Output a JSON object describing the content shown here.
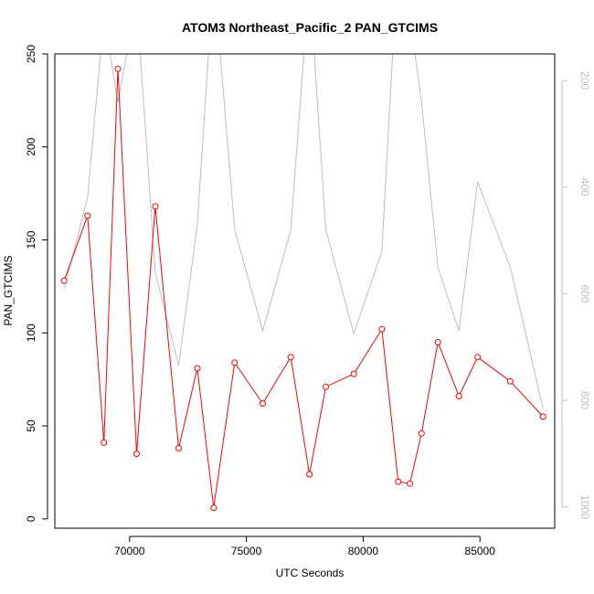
{
  "chart_data": {
    "type": "line",
    "title": "ATOM3 Northeast_Pacific_2 PAN_GTCIMS",
    "xlabel": "UTC Seconds",
    "ylabel": "PAN_GTCIMS",
    "xlim": [
      66800,
      88200
    ],
    "ylim": [
      -5,
      250
    ],
    "y2lim": [
      1040,
      150
    ],
    "x_ticks": [
      70000,
      75000,
      80000,
      85000
    ],
    "y_ticks": [
      0,
      50,
      100,
      150,
      200,
      250
    ],
    "y2_ticks": [
      200,
      400,
      600,
      800,
      1000
    ],
    "grid": false,
    "colors": {
      "series": "#ff0000",
      "secondary": "#bebebe",
      "axis": "#000000"
    },
    "series": [
      {
        "axis": "left",
        "marker": "open-circle",
        "x": [
          67200,
          68200,
          68900,
          69500,
          70300,
          71100,
          72100,
          72900,
          73600,
          74500,
          75700,
          76900,
          77700,
          78400,
          79600,
          80800,
          81500,
          82000,
          82500,
          83200,
          84100,
          84900,
          86300,
          87700
        ],
        "y": [
          128,
          163,
          41,
          242,
          35,
          168,
          38,
          81,
          6,
          84,
          62,
          87,
          24,
          71,
          78,
          102,
          20,
          19,
          46,
          95,
          66,
          87,
          74,
          55
        ]
      },
      {
        "axis": "right",
        "marker": "none",
        "x": [
          67200,
          68200,
          68900,
          69500,
          70300,
          71100,
          72100,
          72900,
          73600,
          74500,
          75700,
          76900,
          77700,
          78400,
          79600,
          80800,
          81500,
          82000,
          82500,
          83200,
          84100,
          84900,
          86300,
          87700
        ],
        "y": [
          590,
          420,
          80,
          240,
          50,
          560,
          735,
          470,
          0,
          480,
          670,
          480,
          10,
          480,
          675,
          520,
          -40,
          80,
          240,
          550,
          670,
          390,
          550,
          815
        ]
      }
    ]
  }
}
